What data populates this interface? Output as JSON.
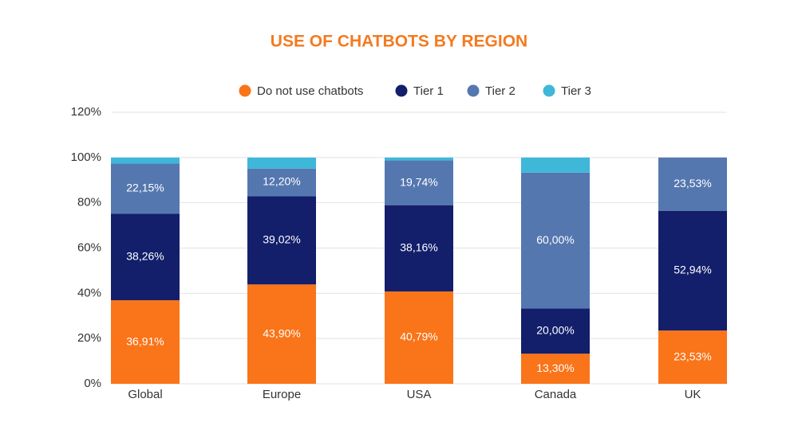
{
  "chart_data": {
    "type": "stacked-bar",
    "title": "USE OF CHATBOTS BY REGION",
    "categories": [
      "Global",
      "Europe",
      "USA",
      "Canada",
      "UK"
    ],
    "series": [
      {
        "name": "Do not use chatbots",
        "color": "#fa7419",
        "values": [
          36.91,
          43.9,
          40.79,
          13.3,
          23.53
        ],
        "value_labels": [
          "36,91%",
          "43,90%",
          "40,79%",
          "13,30%",
          "23,53%"
        ]
      },
      {
        "name": "Tier 1",
        "color": "#131f6b",
        "values": [
          38.26,
          39.02,
          38.16,
          20.0,
          52.94
        ],
        "value_labels": [
          "38,26%",
          "39,02%",
          "38,16%",
          "20,00%",
          "52,94%"
        ]
      },
      {
        "name": "Tier 2",
        "color": "#5577b0",
        "values": [
          22.15,
          12.2,
          19.74,
          60.0,
          23.53
        ],
        "value_labels": [
          "22,15%",
          "12,20%",
          "19,74%",
          "60,00%",
          "23,53%"
        ]
      },
      {
        "name": "Tier 3",
        "color": "#3fb7d9",
        "values": [
          2.68,
          4.88,
          1.31,
          6.7,
          0
        ]
      }
    ],
    "ylim": [
      0,
      120
    ],
    "yticks": [
      {
        "value": 0,
        "label": "0%"
      },
      {
        "value": 20,
        "label": "20%"
      },
      {
        "value": 40,
        "label": "40%"
      },
      {
        "value": 60,
        "label": "60%"
      },
      {
        "value": 80,
        "label": "80%"
      },
      {
        "value": 100,
        "label": "100%"
      },
      {
        "value": 120,
        "label": "120%"
      }
    ],
    "grid": true,
    "legend": "top"
  }
}
